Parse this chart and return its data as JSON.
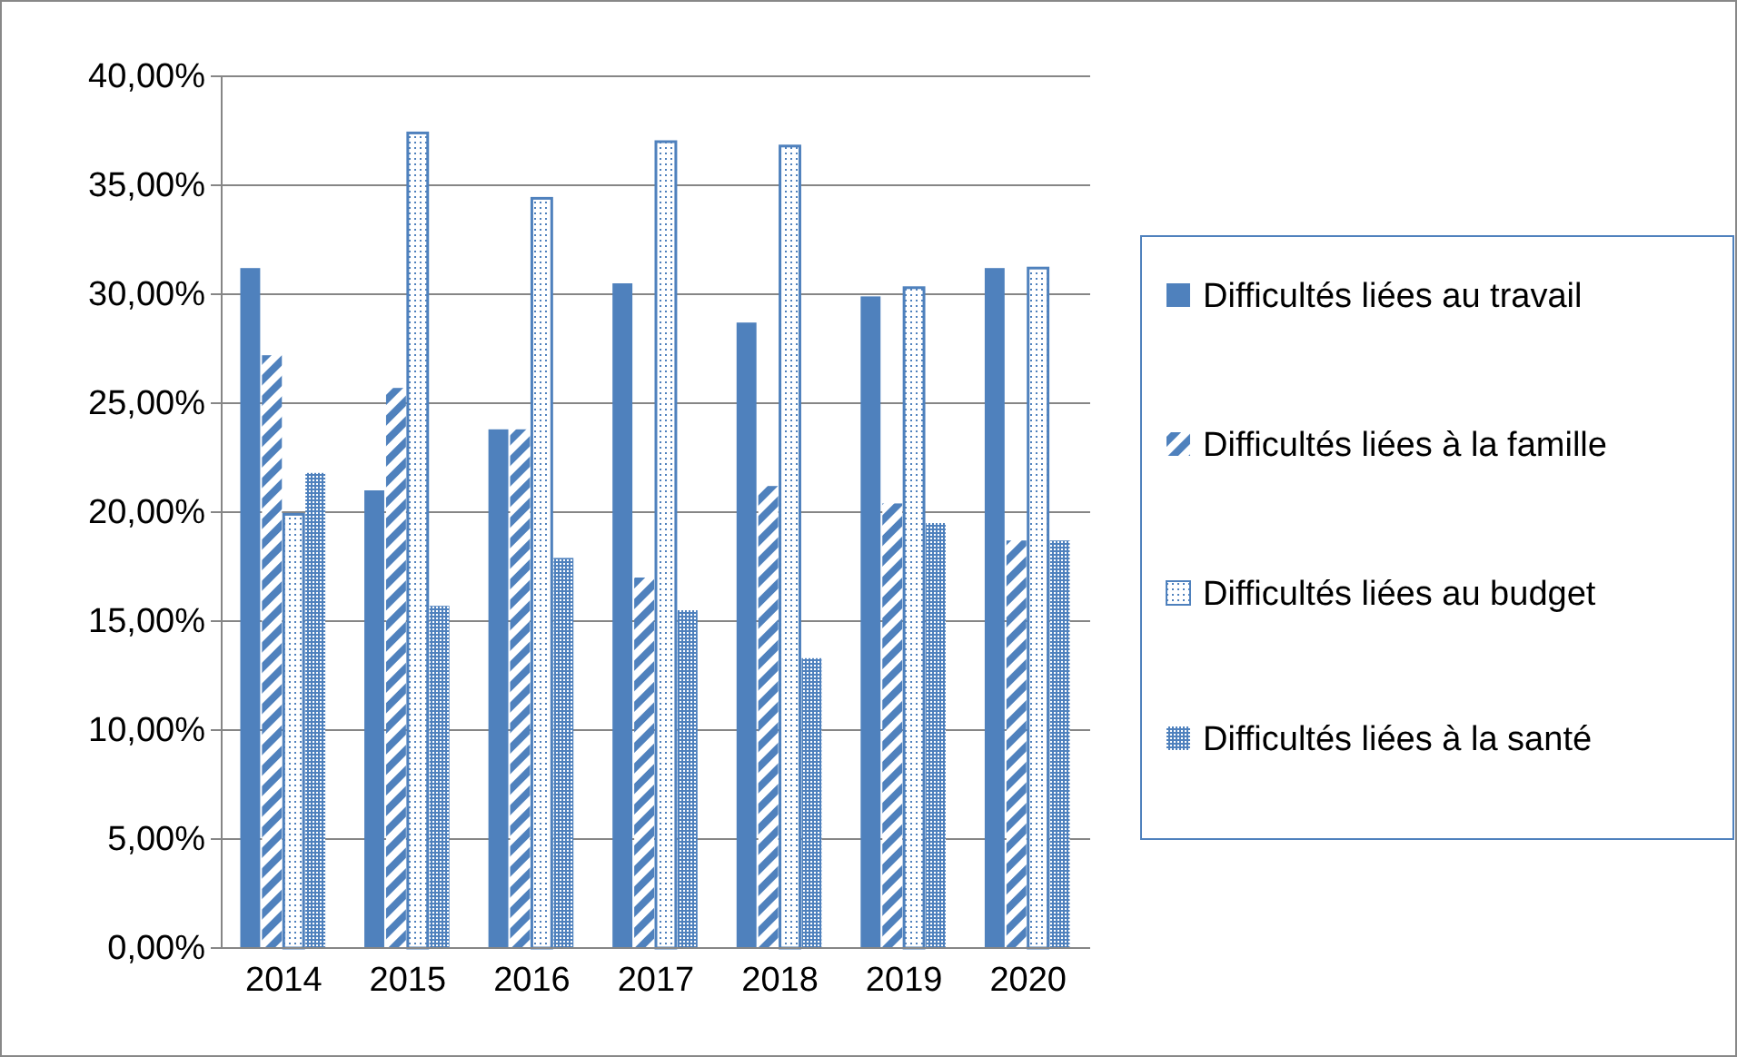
{
  "chart_data": {
    "type": "bar",
    "categories": [
      "2014",
      "2015",
      "2016",
      "2017",
      "2018",
      "2019",
      "2020"
    ],
    "series": [
      {
        "name": "Difficultés liées au travail",
        "color": "#4f81bd",
        "values": [
          31.2,
          21.0,
          23.8,
          30.5,
          28.7,
          29.9,
          31.2
        ]
      },
      {
        "name": "Difficultés liées à la famille",
        "color": "#4f81bd",
        "values": [
          27.2,
          25.7,
          23.8,
          17.0,
          21.2,
          20.4,
          18.7
        ]
      },
      {
        "name": "Difficultés liées au budget",
        "color": "#4f81bd",
        "values": [
          19.9,
          37.4,
          34.4,
          37.0,
          36.8,
          30.3,
          31.2
        ]
      },
      {
        "name": "Difficultés liées à la santé",
        "color": "#4f81bd",
        "values": [
          21.8,
          15.7,
          17.9,
          15.5,
          13.3,
          19.5,
          18.7
        ]
      }
    ],
    "ylim": [
      0,
      40
    ],
    "yticks": [
      {
        "value": 0,
        "label": "0,00%"
      },
      {
        "value": 5,
        "label": "5,00%"
      },
      {
        "value": 10,
        "label": "10,00%"
      },
      {
        "value": 15,
        "label": "15,00%"
      },
      {
        "value": 20,
        "label": "20,00%"
      },
      {
        "value": 25,
        "label": "25,00%"
      },
      {
        "value": 30,
        "label": "30,00%"
      },
      {
        "value": 35,
        "label": "35,00%"
      },
      {
        "value": 40,
        "label": "40,00%"
      }
    ],
    "grid": "y",
    "legend": "right"
  }
}
